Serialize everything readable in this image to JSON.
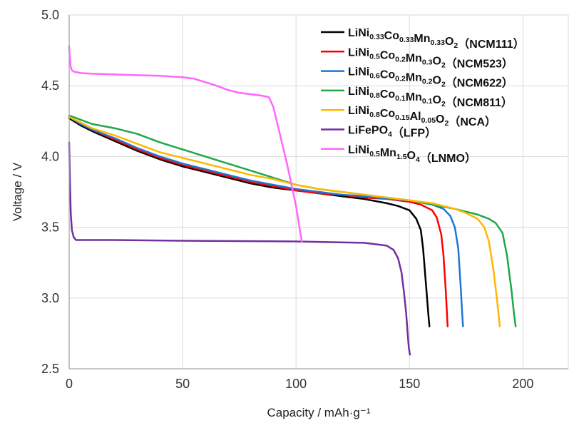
{
  "chart_data": {
    "type": "line",
    "xlabel": "Capacity / mAh·g⁻¹",
    "ylabel": "Voltage / V",
    "xlim": [
      0,
      220
    ],
    "ylim": [
      2.5,
      5.0
    ],
    "x_ticks": [
      0,
      50,
      100,
      150,
      200
    ],
    "y_ticks": [
      2.5,
      3.0,
      3.5,
      4.0,
      4.5,
      5.0
    ],
    "x_tick_labels": [
      "0",
      "50",
      "100",
      "150",
      "200"
    ],
    "y_tick_labels": [
      "2.5",
      "3.0",
      "3.5",
      "4.0",
      "4.5",
      "5.0"
    ],
    "grid": true,
    "legend_position": "top-right",
    "series": [
      {
        "name": "LiNi0.33Co0.33Mn0.33O2 (NCM111)",
        "legend": [
          [
            "LiNi",
            ""
          ],
          [
            "0.33",
            "sub"
          ],
          [
            "Co",
            ""
          ],
          [
            "0.33",
            "sub"
          ],
          [
            "Mn",
            ""
          ],
          [
            "0.33",
            "sub"
          ],
          [
            "O",
            ""
          ],
          [
            "2",
            "sub"
          ],
          [
            "（NCM111）",
            ""
          ]
        ],
        "color": "#000000",
        "x": [
          0,
          5,
          10,
          20,
          30,
          40,
          50,
          60,
          70,
          80,
          90,
          100,
          110,
          120,
          130,
          140,
          145,
          150,
          153,
          155,
          156,
          157,
          158,
          158.5,
          158.8
        ],
        "y": [
          4.27,
          4.22,
          4.18,
          4.11,
          4.04,
          3.98,
          3.93,
          3.89,
          3.85,
          3.81,
          3.78,
          3.76,
          3.74,
          3.72,
          3.7,
          3.67,
          3.65,
          3.62,
          3.56,
          3.48,
          3.35,
          3.15,
          2.95,
          2.85,
          2.8
        ]
      },
      {
        "name": "LiNi0.5Co0.2Mn0.3O2 (NCM523)",
        "legend": [
          [
            "LiNi",
            ""
          ],
          [
            "0.5",
            "sub"
          ],
          [
            "Co",
            ""
          ],
          [
            "0.2",
            "sub"
          ],
          [
            "Mn",
            ""
          ],
          [
            "0.3",
            "sub"
          ],
          [
            "O",
            ""
          ],
          [
            "2",
            "sub"
          ],
          [
            "（NCM523）",
            ""
          ]
        ],
        "color": "#ff0000",
        "x": [
          0,
          5,
          10,
          20,
          30,
          40,
          50,
          60,
          70,
          80,
          90,
          100,
          110,
          120,
          130,
          140,
          150,
          155,
          160,
          162,
          164,
          165,
          166,
          166.5,
          166.8
        ],
        "y": [
          4.28,
          4.23,
          4.19,
          4.12,
          4.05,
          3.99,
          3.94,
          3.9,
          3.86,
          3.82,
          3.79,
          3.76,
          3.74,
          3.73,
          3.71,
          3.7,
          3.68,
          3.66,
          3.62,
          3.57,
          3.45,
          3.3,
          3.05,
          2.9,
          2.8
        ]
      },
      {
        "name": "LiNi0.6Co0.2Mn0.2O2 (NCM622)",
        "legend": [
          [
            "LiNi",
            ""
          ],
          [
            "0.6",
            "sub"
          ],
          [
            "Co",
            ""
          ],
          [
            "0.2",
            "sub"
          ],
          [
            "Mn",
            ""
          ],
          [
            "0.2",
            "sub"
          ],
          [
            "O",
            ""
          ],
          [
            "2",
            "sub"
          ],
          [
            "（NCM622）",
            ""
          ]
        ],
        "color": "#1f77d4",
        "x": [
          0,
          5,
          10,
          20,
          30,
          40,
          50,
          60,
          70,
          80,
          90,
          100,
          110,
          120,
          130,
          140,
          150,
          160,
          165,
          168,
          170,
          171.5,
          172.5,
          173.2,
          173.6
        ],
        "y": [
          4.28,
          4.23,
          4.19,
          4.13,
          4.06,
          4.0,
          3.95,
          3.91,
          3.87,
          3.83,
          3.8,
          3.77,
          3.75,
          3.73,
          3.72,
          3.7,
          3.69,
          3.66,
          3.63,
          3.58,
          3.5,
          3.35,
          3.1,
          2.9,
          2.8
        ]
      },
      {
        "name": "LiNi0.8Co0.1Mn0.1O2 (NCM811)",
        "legend": [
          [
            "LiNi",
            ""
          ],
          [
            "0.8",
            "sub"
          ],
          [
            "Co",
            ""
          ],
          [
            "0.1",
            "sub"
          ],
          [
            "Mn",
            ""
          ],
          [
            "0.1",
            "sub"
          ],
          [
            "O",
            ""
          ],
          [
            "2",
            "sub"
          ],
          [
            "（NCM811）",
            ""
          ]
        ],
        "color": "#1ea84a",
        "x": [
          0,
          5,
          10,
          20,
          30,
          40,
          50,
          60,
          70,
          80,
          90,
          100,
          110,
          120,
          130,
          140,
          150,
          160,
          170,
          180,
          185,
          188,
          191,
          193,
          195,
          196,
          196.8
        ],
        "y": [
          4.29,
          4.26,
          4.23,
          4.2,
          4.16,
          4.1,
          4.05,
          4.0,
          3.95,
          3.9,
          3.85,
          3.8,
          3.77,
          3.75,
          3.73,
          3.71,
          3.69,
          3.66,
          3.63,
          3.59,
          3.56,
          3.53,
          3.46,
          3.3,
          3.05,
          2.9,
          2.8
        ]
      },
      {
        "name": "LiNi0.8Co0.15Al0.05O2 (NCA)",
        "legend": [
          [
            "LiNi",
            ""
          ],
          [
            "0.8",
            "sub"
          ],
          [
            "Co",
            ""
          ],
          [
            "0.15",
            "sub"
          ],
          [
            "Al",
            ""
          ],
          [
            "0.05",
            "sub"
          ],
          [
            "O",
            ""
          ],
          [
            "2",
            "sub"
          ],
          [
            "（NCA）",
            ""
          ]
        ],
        "color": "#ffb800",
        "x": [
          0,
          5,
          10,
          20,
          30,
          40,
          50,
          60,
          70,
          80,
          90,
          100,
          110,
          120,
          130,
          140,
          150,
          160,
          170,
          175,
          180,
          183,
          185,
          187,
          188.5,
          189.3,
          189.8
        ],
        "y": [
          4.28,
          4.24,
          4.2,
          4.15,
          4.09,
          4.03,
          3.99,
          3.95,
          3.91,
          3.87,
          3.84,
          3.8,
          3.77,
          3.75,
          3.73,
          3.71,
          3.69,
          3.67,
          3.63,
          3.6,
          3.56,
          3.5,
          3.4,
          3.2,
          3.0,
          2.88,
          2.8
        ]
      },
      {
        "name": "LiFePO4 (LFP)",
        "legend": [
          [
            "LiFePO",
            ""
          ],
          [
            "4",
            "sub"
          ],
          [
            "（LFP）",
            ""
          ]
        ],
        "color": "#7030a0",
        "x": [
          0,
          0.3,
          0.7,
          1.2,
          2,
          3,
          5,
          20,
          50,
          100,
          130,
          140,
          143,
          145,
          146.5,
          147.5,
          148.5,
          149.2,
          149.7,
          150.2
        ],
        "y": [
          4.1,
          3.85,
          3.6,
          3.48,
          3.43,
          3.41,
          3.41,
          3.41,
          3.405,
          3.4,
          3.39,
          3.37,
          3.34,
          3.28,
          3.18,
          3.05,
          2.9,
          2.75,
          2.65,
          2.6
        ]
      },
      {
        "name": "LiNi0.5Mn1.5O4 (LNMO)",
        "legend": [
          [
            "LiNi",
            ""
          ],
          [
            "0.5",
            "sub"
          ],
          [
            "Mn",
            ""
          ],
          [
            "1.5",
            "sub"
          ],
          [
            "O",
            ""
          ],
          [
            "4",
            "sub"
          ],
          [
            "（LNMO）",
            ""
          ]
        ],
        "color": "#ff66ff",
        "x": [
          0,
          0.3,
          0.7,
          1.2,
          2,
          5,
          10,
          20,
          30,
          40,
          50,
          55,
          65,
          70,
          75,
          80,
          85,
          88,
          90,
          93,
          96,
          98,
          100,
          101,
          102,
          102.6
        ],
        "y": [
          4.78,
          4.7,
          4.63,
          4.61,
          4.6,
          4.59,
          4.585,
          4.58,
          4.575,
          4.57,
          4.56,
          4.55,
          4.5,
          4.47,
          4.45,
          4.44,
          4.43,
          4.42,
          4.35,
          4.15,
          3.95,
          3.8,
          3.65,
          3.55,
          3.45,
          3.4
        ]
      }
    ]
  }
}
